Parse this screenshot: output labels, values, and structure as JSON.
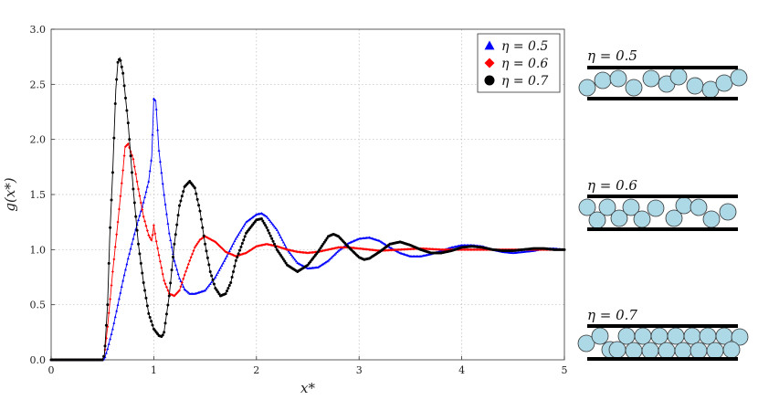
{
  "chart_data": {
    "type": "line",
    "xlabel": "x*",
    "ylabel": "g(x*)",
    "xlim": [
      0,
      5
    ],
    "ylim": [
      0,
      3
    ],
    "grid": true,
    "legend_position": "top-right",
    "x_ticks": [
      "0",
      "1",
      "2",
      "3",
      "4",
      "5"
    ],
    "y_ticks": [
      "0.0",
      "0.5",
      "1.0",
      "1.5",
      "2.0",
      "2.5",
      "3.0"
    ],
    "series": [
      {
        "name": "η = 0.5",
        "color": "#0000ff",
        "marker": "triangle",
        "points": [
          [
            0,
            0
          ],
          [
            0.5,
            0
          ],
          [
            0.52,
            0.01
          ],
          [
            0.55,
            0.1
          ],
          [
            0.6,
            0.28
          ],
          [
            0.65,
            0.5
          ],
          [
            0.7,
            0.72
          ],
          [
            0.75,
            0.92
          ],
          [
            0.8,
            1.1
          ],
          [
            0.85,
            1.27
          ],
          [
            0.9,
            1.43
          ],
          [
            0.95,
            1.62
          ],
          [
            0.98,
            1.85
          ],
          [
            1.0,
            2.37
          ],
          [
            1.02,
            2.35
          ],
          [
            1.05,
            1.9
          ],
          [
            1.1,
            1.5
          ],
          [
            1.15,
            1.15
          ],
          [
            1.2,
            0.9
          ],
          [
            1.25,
            0.74
          ],
          [
            1.3,
            0.64
          ],
          [
            1.35,
            0.6
          ],
          [
            1.4,
            0.6
          ],
          [
            1.5,
            0.63
          ],
          [
            1.6,
            0.75
          ],
          [
            1.7,
            0.92
          ],
          [
            1.8,
            1.1
          ],
          [
            1.9,
            1.25
          ],
          [
            2.0,
            1.32
          ],
          [
            2.05,
            1.33
          ],
          [
            2.1,
            1.3
          ],
          [
            2.2,
            1.18
          ],
          [
            2.3,
            1.0
          ],
          [
            2.4,
            0.88
          ],
          [
            2.5,
            0.83
          ],
          [
            2.6,
            0.84
          ],
          [
            2.7,
            0.9
          ],
          [
            2.8,
            0.99
          ],
          [
            2.9,
            1.06
          ],
          [
            3.0,
            1.1
          ],
          [
            3.1,
            1.11
          ],
          [
            3.2,
            1.08
          ],
          [
            3.3,
            1.02
          ],
          [
            3.4,
            0.97
          ],
          [
            3.5,
            0.94
          ],
          [
            3.6,
            0.94
          ],
          [
            3.7,
            0.96
          ],
          [
            3.8,
            0.99
          ],
          [
            3.9,
            1.02
          ],
          [
            4.0,
            1.04
          ],
          [
            4.1,
            1.04
          ],
          [
            4.2,
            1.03
          ],
          [
            4.3,
            1.0
          ],
          [
            4.4,
            0.98
          ],
          [
            4.5,
            0.97
          ],
          [
            4.6,
            0.98
          ],
          [
            4.7,
            0.99
          ],
          [
            4.8,
            1.01
          ],
          [
            4.9,
            1.01
          ],
          [
            5.0,
            1.0
          ]
        ]
      },
      {
        "name": "η = 0.6",
        "color": "#ff0000",
        "marker": "diamond",
        "points": [
          [
            0,
            0
          ],
          [
            0.5,
            0
          ],
          [
            0.52,
            0.05
          ],
          [
            0.55,
            0.3
          ],
          [
            0.58,
            0.6
          ],
          [
            0.6,
            0.8
          ],
          [
            0.65,
            1.25
          ],
          [
            0.7,
            1.72
          ],
          [
            0.72,
            1.93
          ],
          [
            0.75,
            1.96
          ],
          [
            0.8,
            1.82
          ],
          [
            0.85,
            1.55
          ],
          [
            0.9,
            1.3
          ],
          [
            0.95,
            1.13
          ],
          [
            0.98,
            1.08
          ],
          [
            1.0,
            1.22
          ],
          [
            1.02,
            1.1
          ],
          [
            1.05,
            0.95
          ],
          [
            1.1,
            0.72
          ],
          [
            1.15,
            0.6
          ],
          [
            1.2,
            0.58
          ],
          [
            1.25,
            0.63
          ],
          [
            1.3,
            0.77
          ],
          [
            1.35,
            0.9
          ],
          [
            1.4,
            1.02
          ],
          [
            1.45,
            1.09
          ],
          [
            1.5,
            1.12
          ],
          [
            1.6,
            1.07
          ],
          [
            1.7,
            0.98
          ],
          [
            1.8,
            0.94
          ],
          [
            1.9,
            0.97
          ],
          [
            2.0,
            1.03
          ],
          [
            2.1,
            1.05
          ],
          [
            2.2,
            1.03
          ],
          [
            2.3,
            1.0
          ],
          [
            2.4,
            0.98
          ],
          [
            2.5,
            0.97
          ],
          [
            2.6,
            0.98
          ],
          [
            2.7,
            1.0
          ],
          [
            2.8,
            1.02
          ],
          [
            2.9,
            1.02
          ],
          [
            3.0,
            1.01
          ],
          [
            3.2,
            0.99
          ],
          [
            3.4,
            1.0
          ],
          [
            3.6,
            1.01
          ],
          [
            3.8,
            1.0
          ],
          [
            4.0,
            1.0
          ],
          [
            4.2,
            1.0
          ],
          [
            4.4,
            1.0
          ],
          [
            4.6,
            1.0
          ],
          [
            4.8,
            1.0
          ],
          [
            5.0,
            1.0
          ]
        ]
      },
      {
        "name": "η = 0.7",
        "color": "#000000",
        "marker": "circle",
        "points": [
          [
            0,
            0
          ],
          [
            0.5,
            0
          ],
          [
            0.52,
            0.05
          ],
          [
            0.55,
            0.5
          ],
          [
            0.57,
            1.1
          ],
          [
            0.6,
            1.7
          ],
          [
            0.63,
            2.45
          ],
          [
            0.65,
            2.7
          ],
          [
            0.67,
            2.74
          ],
          [
            0.7,
            2.6
          ],
          [
            0.75,
            2.15
          ],
          [
            0.8,
            1.55
          ],
          [
            0.85,
            1.05
          ],
          [
            0.9,
            0.7
          ],
          [
            0.95,
            0.42
          ],
          [
            1.0,
            0.28
          ],
          [
            1.05,
            0.22
          ],
          [
            1.08,
            0.21
          ],
          [
            1.1,
            0.25
          ],
          [
            1.15,
            0.58
          ],
          [
            1.2,
            1.05
          ],
          [
            1.25,
            1.4
          ],
          [
            1.3,
            1.57
          ],
          [
            1.35,
            1.62
          ],
          [
            1.4,
            1.56
          ],
          [
            1.45,
            1.35
          ],
          [
            1.5,
            1.05
          ],
          [
            1.55,
            0.8
          ],
          [
            1.6,
            0.65
          ],
          [
            1.65,
            0.58
          ],
          [
            1.7,
            0.6
          ],
          [
            1.75,
            0.7
          ],
          [
            1.8,
            0.9
          ],
          [
            1.9,
            1.15
          ],
          [
            2.0,
            1.27
          ],
          [
            2.05,
            1.28
          ],
          [
            2.1,
            1.2
          ],
          [
            2.2,
            1.0
          ],
          [
            2.3,
            0.86
          ],
          [
            2.4,
            0.8
          ],
          [
            2.5,
            0.86
          ],
          [
            2.6,
            0.98
          ],
          [
            2.7,
            1.12
          ],
          [
            2.75,
            1.14
          ],
          [
            2.8,
            1.12
          ],
          [
            2.9,
            1.02
          ],
          [
            3.0,
            0.93
          ],
          [
            3.05,
            0.91
          ],
          [
            3.1,
            0.92
          ],
          [
            3.2,
            0.98
          ],
          [
            3.3,
            1.05
          ],
          [
            3.4,
            1.07
          ],
          [
            3.5,
            1.04
          ],
          [
            3.6,
            1.0
          ],
          [
            3.7,
            0.97
          ],
          [
            3.8,
            0.97
          ],
          [
            3.9,
            0.99
          ],
          [
            4.0,
            1.02
          ],
          [
            4.1,
            1.03
          ],
          [
            4.2,
            1.02
          ],
          [
            4.3,
            1.0
          ],
          [
            4.4,
            0.99
          ],
          [
            4.5,
            0.99
          ],
          [
            4.6,
            1.0
          ],
          [
            4.7,
            1.01
          ],
          [
            4.8,
            1.01
          ],
          [
            4.9,
            1.0
          ],
          [
            5.0,
            1.0
          ]
        ]
      }
    ]
  },
  "panels": [
    {
      "label": "η = 0.5",
      "packing": "single-layer"
    },
    {
      "label": "η = 0.6",
      "packing": "partial-double-layer"
    },
    {
      "label": "η = 0.7",
      "packing": "double-layer"
    }
  ],
  "colors": {
    "particle_fill": "#add8e6",
    "particle_stroke": "#333333",
    "wall": "#000000"
  }
}
